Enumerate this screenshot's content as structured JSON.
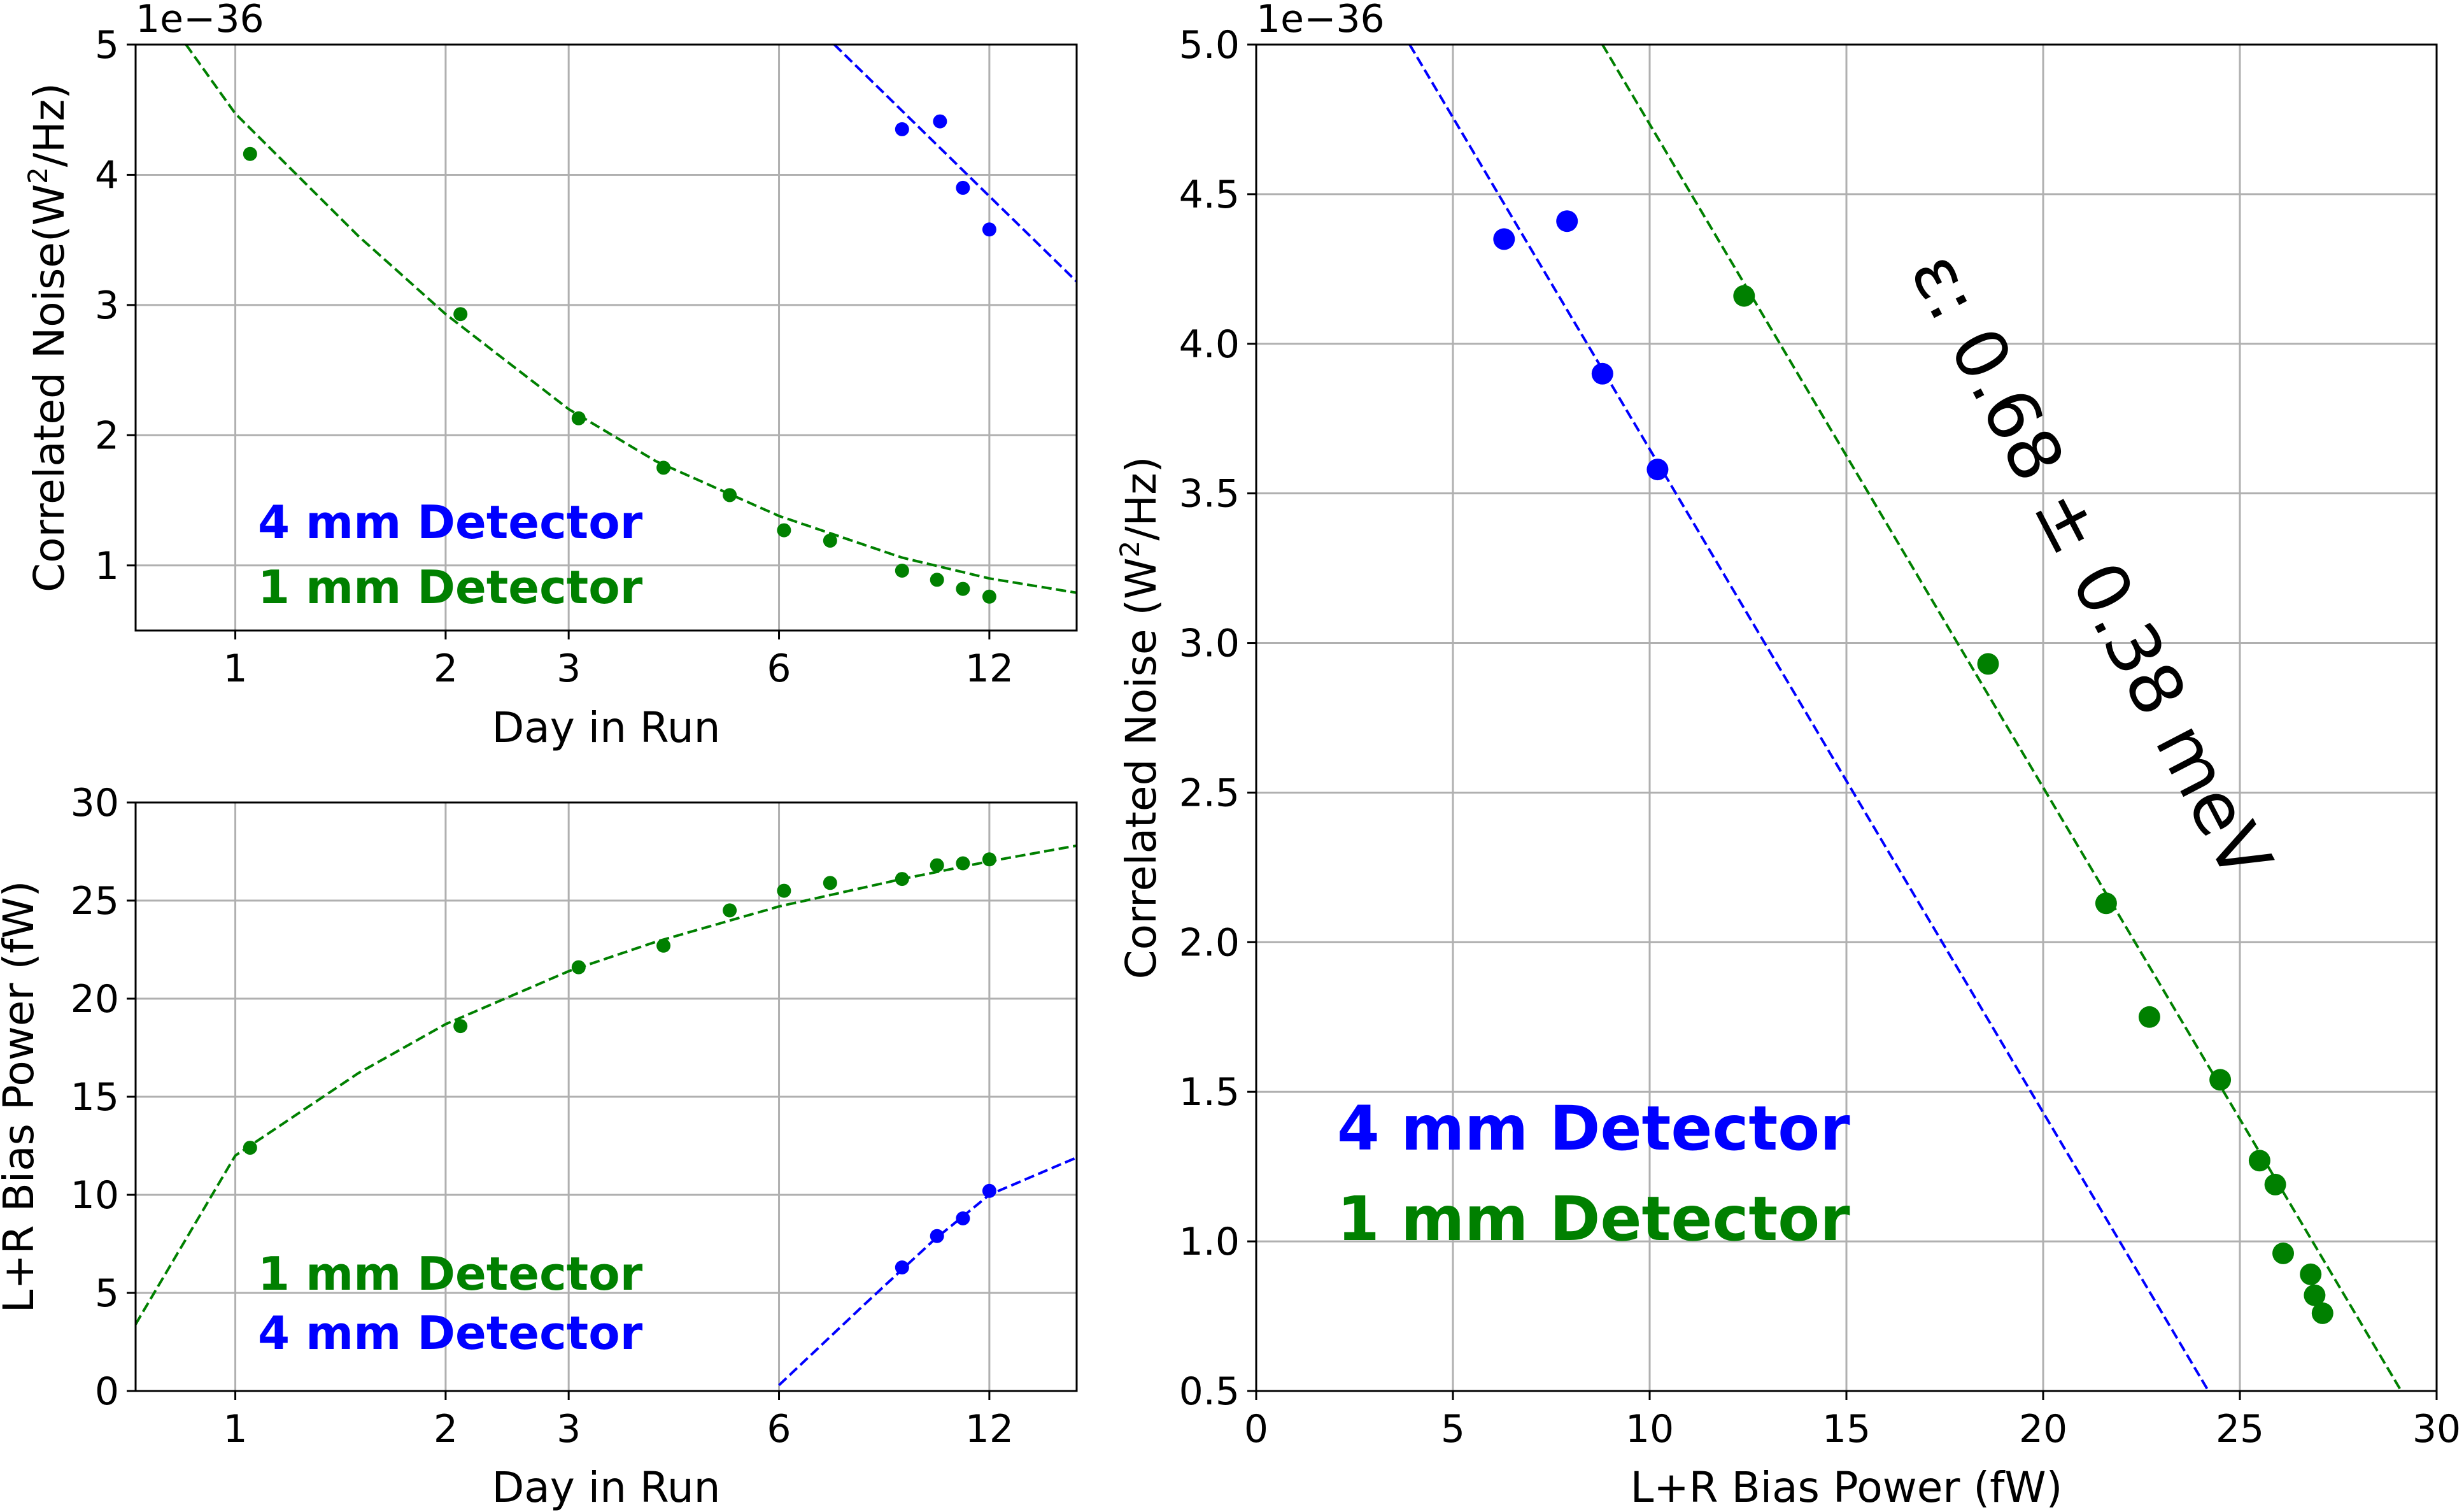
{
  "colors": {
    "blue": "#0000ff",
    "green": "#008000",
    "grid": "#b0b0b0"
  },
  "chart_data": [
    {
      "id": "noise_vs_day",
      "type": "scatter",
      "xscale": "log",
      "xlabel": "Day in Run",
      "ylabel_pre": "Correlated Noise(W",
      "ylabel_sup": "2",
      "ylabel_post": "/Hz)",
      "offset_text": "1e−36",
      "xlim": [
        0.72,
        16.0
      ],
      "ylim": [
        0.5,
        5.0
      ],
      "xticks": [
        1,
        2,
        3,
        6,
        12
      ],
      "yticks": [
        1,
        2,
        3,
        4,
        5
      ],
      "grid": true,
      "legend": {
        "placement": "lower-left",
        "entries": [
          "4 mm Detector",
          "1 mm Detector"
        ]
      },
      "series": [
        {
          "name": "4 mm Detector",
          "color": "#0000ff",
          "points": [
            [
              9.0,
              4.35
            ],
            [
              10.2,
              4.41
            ],
            [
              11.0,
              3.9
            ],
            [
              12.0,
              3.58
            ]
          ],
          "fit": [
            [
              7.2,
              5.0
            ],
            [
              16.0,
              3.18
            ]
          ]
        },
        {
          "name": "1 mm Detector",
          "color": "#008000",
          "points": [
            [
              1.05,
              4.16
            ],
            [
              2.1,
              2.93
            ],
            [
              3.1,
              2.13
            ],
            [
              4.1,
              1.75
            ],
            [
              5.1,
              1.54
            ],
            [
              6.1,
              1.27
            ],
            [
              7.1,
              1.19
            ],
            [
              9.0,
              0.96
            ],
            [
              10.1,
              0.89
            ],
            [
              11.0,
              0.82
            ],
            [
              12.0,
              0.76
            ]
          ],
          "fit": [
            [
              0.85,
              5.0
            ],
            [
              1.0,
              4.47
            ],
            [
              1.5,
              3.53
            ],
            [
              2.0,
              2.93
            ],
            [
              3.0,
              2.2
            ],
            [
              4.0,
              1.8
            ],
            [
              6.0,
              1.38
            ],
            [
              9.0,
              1.06
            ],
            [
              12.0,
              0.9
            ],
            [
              16.0,
              0.79
            ]
          ]
        }
      ]
    },
    {
      "id": "power_vs_day",
      "type": "scatter",
      "xscale": "log",
      "xlabel": "Day in Run",
      "ylabel": "L+R Bias Power (fW)",
      "xlim": [
        0.72,
        16.0
      ],
      "ylim": [
        0,
        30
      ],
      "xticks": [
        1,
        2,
        3,
        6,
        12
      ],
      "yticks": [
        0,
        5,
        10,
        15,
        20,
        25,
        30
      ],
      "grid": true,
      "legend": {
        "placement": "lower-left",
        "entries": [
          "1 mm Detector",
          "4 mm Detector"
        ]
      },
      "series": [
        {
          "name": "1 mm Detector",
          "color": "#008000",
          "points": [
            [
              1.05,
              12.4
            ],
            [
              2.1,
              18.6
            ],
            [
              3.1,
              21.6
            ],
            [
              4.1,
              22.7
            ],
            [
              5.1,
              24.5
            ],
            [
              6.1,
              25.5
            ],
            [
              7.1,
              25.9
            ],
            [
              9.0,
              26.1
            ],
            [
              10.1,
              26.8
            ],
            [
              11.0,
              26.9
            ],
            [
              12.0,
              27.1
            ]
          ],
          "fit": [
            [
              0.72,
              3.4
            ],
            [
              1.0,
              12.0
            ],
            [
              1.5,
              16.2
            ],
            [
              2.0,
              18.7
            ],
            [
              3.0,
              21.4
            ],
            [
              4.0,
              22.9
            ],
            [
              6.0,
              24.7
            ],
            [
              9.0,
              26.1
            ],
            [
              12.0,
              27.0
            ],
            [
              16.0,
              27.8
            ]
          ]
        },
        {
          "name": "4 mm Detector",
          "color": "#0000ff",
          "points": [
            [
              9.0,
              6.3
            ],
            [
              10.1,
              7.9
            ],
            [
              11.0,
              8.8
            ],
            [
              12.0,
              10.2
            ]
          ],
          "fit": [
            [
              6.0,
              0.3
            ],
            [
              8.0,
              4.5
            ],
            [
              10.0,
              7.7
            ],
            [
              12.0,
              10.0
            ],
            [
              16.0,
              11.9
            ]
          ]
        }
      ]
    },
    {
      "id": "noise_vs_power",
      "type": "scatter",
      "xlabel": "L+R Bias Power (fW)",
      "ylabel_pre": "Correlated Noise (W",
      "ylabel_sup": "2",
      "ylabel_post": "/Hz)",
      "offset_text": "1e−36",
      "xlim": [
        0,
        30
      ],
      "ylim": [
        0.5,
        5.0
      ],
      "xticks": [
        0,
        5,
        10,
        15,
        20,
        25,
        30
      ],
      "yticks": [
        "0.5",
        "1.0",
        "1.5",
        "2.0",
        "2.5",
        "3.0",
        "3.5",
        "4.0",
        "4.5",
        "5.0"
      ],
      "grid": true,
      "legend": {
        "placement": "lower-left",
        "entries": [
          "4 mm Detector",
          "1 mm Detector"
        ]
      },
      "annotation": {
        "text": "ε: 0.68 ± 0.38 meV",
        "rotation_deg": 62.5,
        "at": [
          21.1,
          3.25
        ]
      },
      "series": [
        {
          "name": "4 mm Detector",
          "color": "#0000ff",
          "points": [
            [
              6.3,
              4.35
            ],
            [
              7.9,
              4.41
            ],
            [
              8.8,
              3.9
            ],
            [
              10.2,
              3.58
            ]
          ],
          "fit": [
            [
              3.9,
              5.0
            ],
            [
              24.2,
              0.5
            ]
          ]
        },
        {
          "name": "1 mm Detector",
          "color": "#008000",
          "points": [
            [
              12.4,
              4.16
            ],
            [
              18.6,
              2.93
            ],
            [
              21.6,
              2.13
            ],
            [
              22.7,
              1.75
            ],
            [
              24.5,
              1.54
            ],
            [
              25.5,
              1.27
            ],
            [
              25.9,
              1.19
            ],
            [
              26.1,
              0.96
            ],
            [
              26.8,
              0.89
            ],
            [
              26.9,
              0.82
            ],
            [
              27.1,
              0.76
            ]
          ],
          "fit": [
            [
              8.8,
              5.0
            ],
            [
              29.1,
              0.5
            ]
          ]
        }
      ]
    }
  ]
}
